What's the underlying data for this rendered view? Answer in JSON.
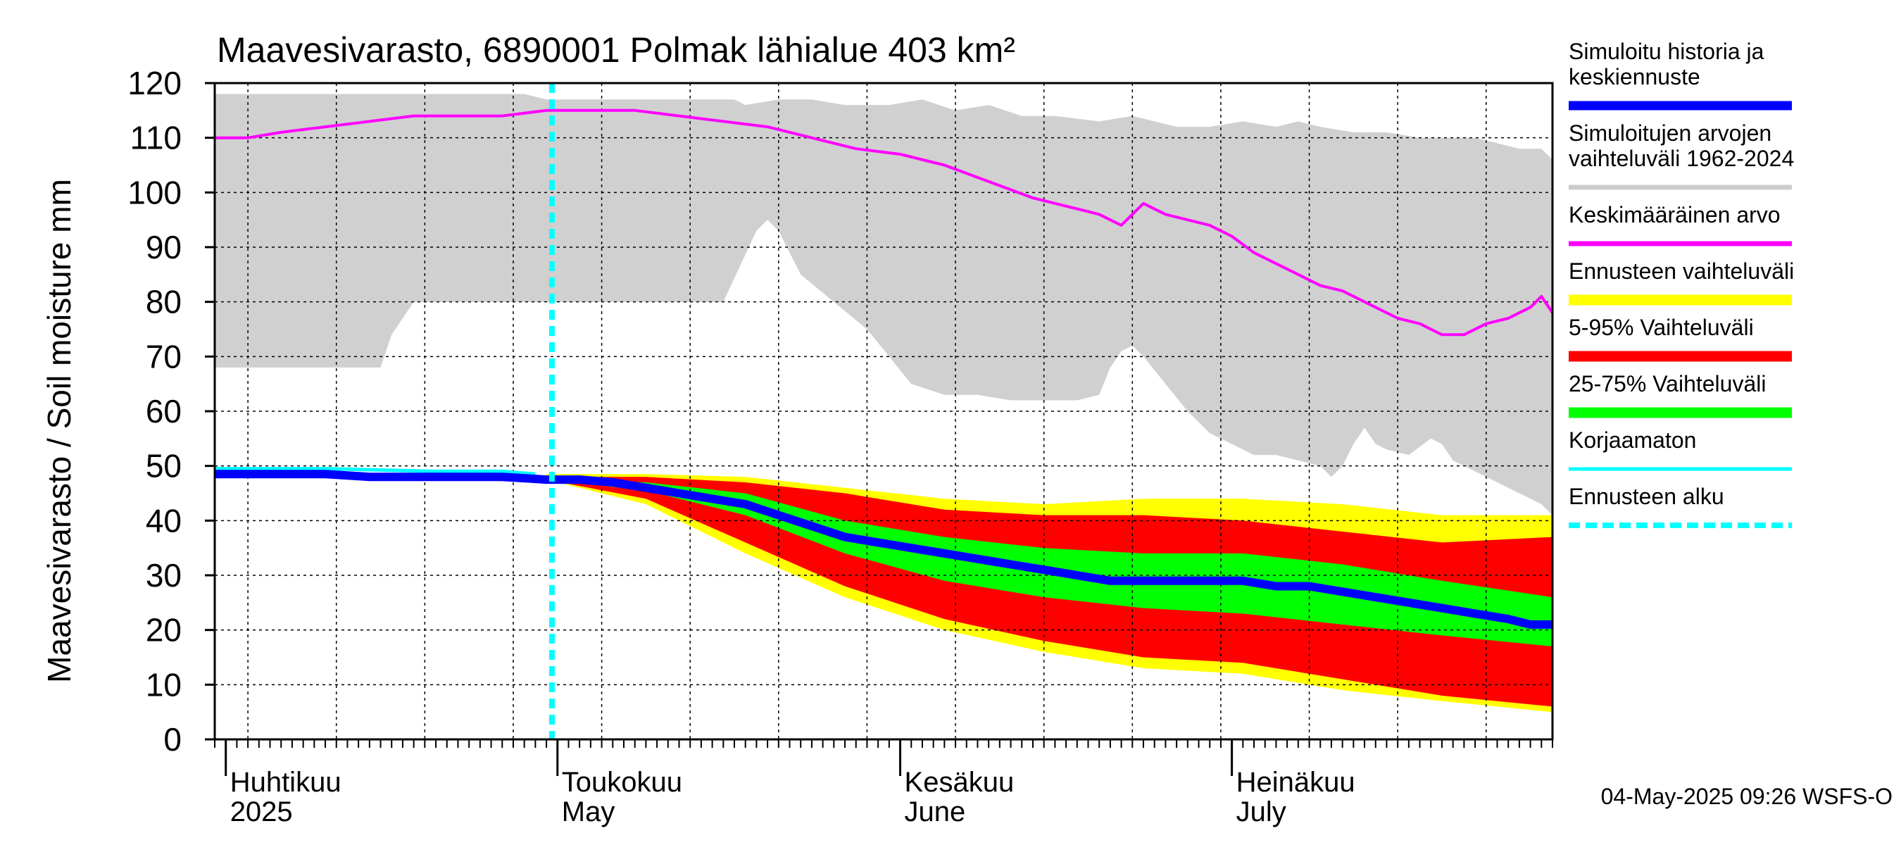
{
  "chart_data": {
    "type": "area",
    "title": "Maavesivarasto, 6890001 Polmak lähialue 403 km²",
    "ylabel": "Maavesivarasto / Soil moisture   mm",
    "xlabel": "",
    "ylim": [
      0,
      120
    ],
    "yticks": [
      "0",
      "10",
      "20",
      "30",
      "40",
      "50",
      "60",
      "70",
      "80",
      "90",
      "100",
      "110",
      "120"
    ],
    "x_range_days": [
      0,
      121
    ],
    "x_unit": "days since 2025-03-31",
    "month_labels": [
      {
        "day": 1,
        "fi": "Huhtikuu",
        "en": "2025"
      },
      {
        "day": 31,
        "fi": "Toukokuu",
        "en": "May"
      },
      {
        "day": 62,
        "fi": "Kesäkuu",
        "en": "June"
      },
      {
        "day": 92,
        "fi": "Heinäkuu",
        "en": "July"
      }
    ],
    "forecast_start_day": 30.5,
    "footer": "04-May-2025 09:26 WSFS-O",
    "legend": [
      {
        "label": "Simuloitu historia ja keskiennuste",
        "color": "#0000ff",
        "style": "line"
      },
      {
        "label": "Simuloitujen arvojen vaihteluväli 1962-2024",
        "color": "#cccccc",
        "style": "line"
      },
      {
        "label": "Keskimääräinen arvo",
        "color": "#ff00ff",
        "style": "line"
      },
      {
        "label": "Ennusteen vaihteluväli",
        "color": "#ffff00",
        "style": "band"
      },
      {
        "label": "5-95% Vaihteluväli",
        "color": "#ff0000",
        "style": "band"
      },
      {
        "label": "25-75% Vaihteluväli",
        "color": "#00ff00",
        "style": "band"
      },
      {
        "label": "Korjaamaton",
        "color": "#00ffff",
        "style": "line"
      },
      {
        "label": "Ennusteen alku",
        "color": "#00ffff",
        "style": "dashed"
      }
    ],
    "series": {
      "hist_range_upper": [
        [
          0,
          118
        ],
        [
          28,
          118
        ],
        [
          30,
          117
        ],
        [
          33,
          117
        ],
        [
          36,
          117
        ],
        [
          39,
          117
        ],
        [
          42,
          117
        ],
        [
          45,
          117
        ],
        [
          47,
          117
        ],
        [
          48,
          116
        ],
        [
          51,
          117
        ],
        [
          54,
          117
        ],
        [
          57,
          116
        ],
        [
          61,
          116
        ],
        [
          64,
          117
        ],
        [
          67,
          115
        ],
        [
          70,
          116
        ],
        [
          73,
          114
        ],
        [
          76,
          114
        ],
        [
          80,
          113
        ],
        [
          83,
          114
        ],
        [
          87,
          112
        ],
        [
          90,
          112
        ],
        [
          93,
          113
        ],
        [
          96,
          112
        ],
        [
          98,
          113
        ],
        [
          100,
          112
        ],
        [
          103,
          111
        ],
        [
          106,
          111
        ],
        [
          109,
          110
        ],
        [
          111,
          110
        ],
        [
          114,
          110
        ],
        [
          116,
          109
        ],
        [
          118,
          108
        ],
        [
          120,
          108
        ],
        [
          121,
          106
        ]
      ],
      "hist_range_lower": [
        [
          0,
          68
        ],
        [
          15,
          68
        ],
        [
          16,
          74
        ],
        [
          18,
          80
        ],
        [
          46,
          80
        ],
        [
          49,
          93
        ],
        [
          50,
          95
        ],
        [
          51,
          93
        ],
        [
          53,
          85
        ],
        [
          56,
          80
        ],
        [
          59,
          75
        ],
        [
          61,
          70
        ],
        [
          63,
          65
        ],
        [
          66,
          63
        ],
        [
          69,
          63
        ],
        [
          72,
          62
        ],
        [
          75,
          62
        ],
        [
          78,
          62
        ],
        [
          80,
          63
        ],
        [
          81,
          68
        ],
        [
          82,
          71
        ],
        [
          83,
          72
        ],
        [
          84,
          70
        ],
        [
          86,
          65
        ],
        [
          88,
          60
        ],
        [
          90,
          56
        ],
        [
          92,
          54
        ],
        [
          94,
          52
        ],
        [
          96,
          52
        ],
        [
          98,
          51
        ],
        [
          100,
          50
        ],
        [
          101,
          48
        ],
        [
          102,
          50
        ],
        [
          103,
          54
        ],
        [
          104,
          57
        ],
        [
          105,
          54
        ],
        [
          106,
          53
        ],
        [
          108,
          52
        ],
        [
          110,
          55
        ],
        [
          111,
          54
        ],
        [
          112,
          51
        ],
        [
          114,
          49
        ],
        [
          116,
          47
        ],
        [
          118,
          45
        ],
        [
          120,
          43
        ],
        [
          121,
          41
        ]
      ],
      "mean": [
        [
          0,
          110
        ],
        [
          3,
          110
        ],
        [
          6,
          111
        ],
        [
          10,
          112
        ],
        [
          14,
          113
        ],
        [
          18,
          114
        ],
        [
          22,
          114
        ],
        [
          26,
          114
        ],
        [
          30,
          115
        ],
        [
          34,
          115
        ],
        [
          38,
          115
        ],
        [
          42,
          114
        ],
        [
          46,
          113
        ],
        [
          50,
          112
        ],
        [
          54,
          110
        ],
        [
          58,
          108
        ],
        [
          62,
          107
        ],
        [
          66,
          105
        ],
        [
          70,
          102
        ],
        [
          74,
          99
        ],
        [
          78,
          97
        ],
        [
          80,
          96
        ],
        [
          82,
          94
        ],
        [
          84,
          98
        ],
        [
          86,
          96
        ],
        [
          88,
          95
        ],
        [
          90,
          94
        ],
        [
          92,
          92
        ],
        [
          94,
          89
        ],
        [
          96,
          87
        ],
        [
          98,
          85
        ],
        [
          100,
          83
        ],
        [
          102,
          82
        ],
        [
          104,
          80
        ],
        [
          106,
          78
        ],
        [
          107,
          77
        ],
        [
          109,
          76
        ],
        [
          111,
          74
        ],
        [
          113,
          74
        ],
        [
          115,
          76
        ],
        [
          117,
          77
        ],
        [
          119,
          79
        ],
        [
          120,
          81
        ],
        [
          121,
          78
        ]
      ],
      "uncorrected": [
        [
          0,
          49.5
        ],
        [
          10,
          49.5
        ],
        [
          20,
          49
        ],
        [
          26,
          49
        ],
        [
          29,
          48.5
        ]
      ],
      "main": [
        [
          0,
          48.5
        ],
        [
          5,
          48.5
        ],
        [
          10,
          48.5
        ],
        [
          14,
          48
        ],
        [
          18,
          48
        ],
        [
          22,
          48
        ],
        [
          26,
          48
        ],
        [
          30,
          47.5
        ],
        [
          33,
          47.5
        ],
        [
          36,
          47
        ],
        [
          39,
          46
        ],
        [
          42,
          45
        ],
        [
          45,
          44
        ],
        [
          48,
          43
        ],
        [
          51,
          41
        ],
        [
          54,
          39
        ],
        [
          57,
          37
        ],
        [
          60,
          36
        ],
        [
          63,
          35
        ],
        [
          66,
          34
        ],
        [
          69,
          33
        ],
        [
          72,
          32
        ],
        [
          75,
          31
        ],
        [
          78,
          30
        ],
        [
          81,
          29
        ],
        [
          84,
          29
        ],
        [
          87,
          29
        ],
        [
          90,
          29
        ],
        [
          93,
          29
        ],
        [
          96,
          28
        ],
        [
          99,
          28
        ],
        [
          102,
          27
        ],
        [
          105,
          26
        ],
        [
          108,
          25
        ],
        [
          111,
          24
        ],
        [
          114,
          23
        ],
        [
          117,
          22
        ],
        [
          119,
          21
        ],
        [
          121,
          21
        ]
      ],
      "p25": [
        [
          30,
          47.5
        ],
        [
          39,
          45.5
        ],
        [
          48,
          41
        ],
        [
          57,
          34
        ],
        [
          66,
          29
        ],
        [
          75,
          26
        ],
        [
          84,
          24
        ],
        [
          93,
          23
        ],
        [
          102,
          21
        ],
        [
          111,
          19
        ],
        [
          121,
          17
        ]
      ],
      "p75": [
        [
          30,
          47.5
        ],
        [
          39,
          47
        ],
        [
          48,
          45
        ],
        [
          57,
          40
        ],
        [
          66,
          37
        ],
        [
          75,
          35
        ],
        [
          84,
          34
        ],
        [
          93,
          34
        ],
        [
          102,
          32
        ],
        [
          111,
          29
        ],
        [
          121,
          26
        ]
      ],
      "p5": [
        [
          30,
          47.5
        ],
        [
          39,
          44
        ],
        [
          48,
          36
        ],
        [
          57,
          28
        ],
        [
          66,
          22
        ],
        [
          75,
          18
        ],
        [
          84,
          15
        ],
        [
          93,
          14
        ],
        [
          102,
          11
        ],
        [
          111,
          8
        ],
        [
          121,
          6
        ]
      ],
      "p95": [
        [
          30,
          48
        ],
        [
          39,
          48
        ],
        [
          48,
          47
        ],
        [
          57,
          45
        ],
        [
          66,
          42
        ],
        [
          75,
          41
        ],
        [
          84,
          41
        ],
        [
          93,
          40
        ],
        [
          102,
          38
        ],
        [
          111,
          36
        ],
        [
          121,
          37
        ]
      ],
      "fmin": [
        [
          30,
          47.5
        ],
        [
          39,
          43
        ],
        [
          48,
          34
        ],
        [
          57,
          26
        ],
        [
          66,
          20
        ],
        [
          75,
          16
        ],
        [
          84,
          13
        ],
        [
          93,
          12
        ],
        [
          102,
          9
        ],
        [
          111,
          7
        ],
        [
          121,
          5
        ]
      ],
      "fmax": [
        [
          30,
          48.5
        ],
        [
          39,
          48.5
        ],
        [
          48,
          48
        ],
        [
          57,
          46
        ],
        [
          66,
          44
        ],
        [
          75,
          43
        ],
        [
          84,
          44
        ],
        [
          93,
          44
        ],
        [
          102,
          43
        ],
        [
          111,
          41
        ],
        [
          121,
          41
        ]
      ]
    },
    "colors": {
      "hist_range": "#d0d0d0",
      "mean": "#ff00ff",
      "main": "#0000ff",
      "uncorrected": "#00ffff",
      "p5_95": "#ff0000",
      "p25_75": "#00ff00",
      "forecast_range": "#ffff00",
      "forecast_start": "#00ffff",
      "grid": "#000000"
    }
  }
}
